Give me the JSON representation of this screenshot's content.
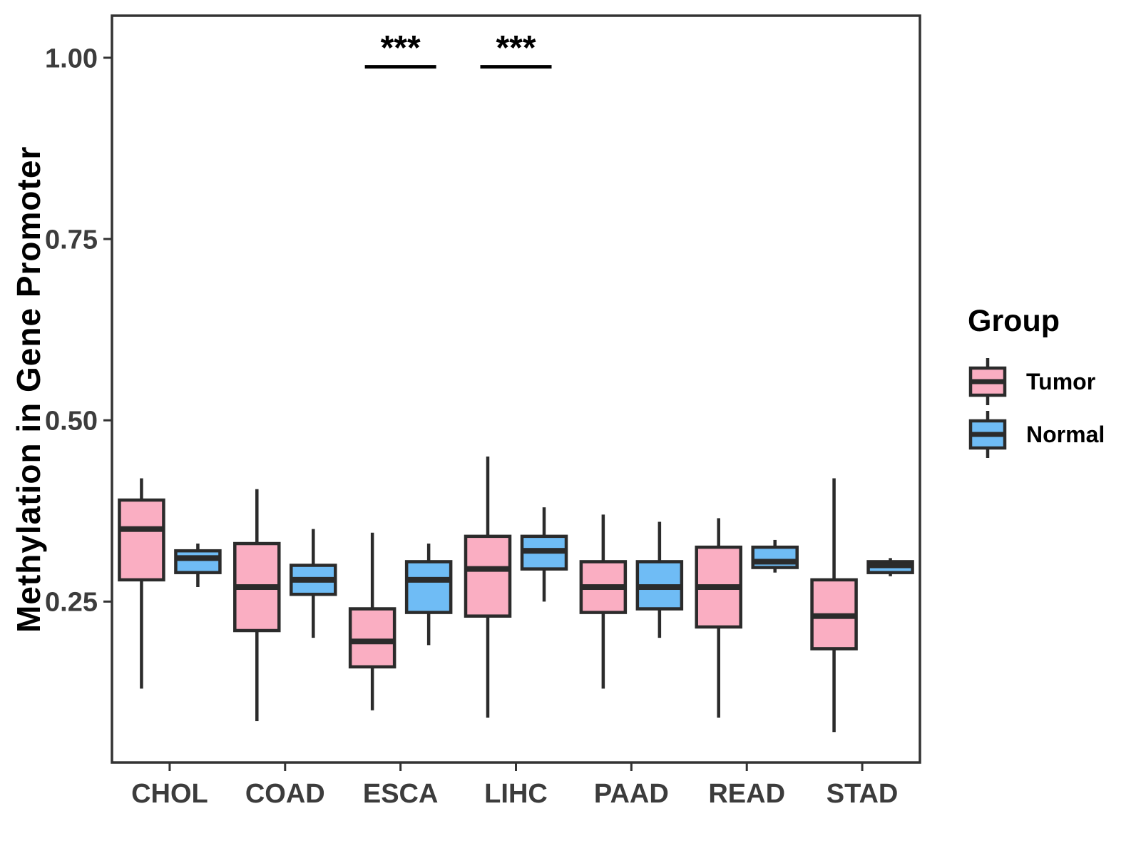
{
  "chart_data": {
    "type": "boxplot",
    "title": "",
    "xlabel": "",
    "ylabel": "Methylation in Gene Promoter",
    "categories": [
      "CHOL",
      "COAD",
      "ESCA",
      "LIHC",
      "PAAD",
      "READ",
      "STAD"
    ],
    "legend": {
      "title": "Group",
      "position": "right"
    },
    "axes": {
      "y_tick_labels": [
        "1.00",
        "0.75",
        "0.50",
        "0.25"
      ],
      "y_tick_values": [
        1.0,
        0.75,
        0.5,
        0.25
      ],
      "y_domain": [
        0.028,
        1.058
      ],
      "grid": false
    },
    "series": [
      {
        "name": "Tumor",
        "fill": "#FAAEC2",
        "boxes": [
          {
            "category": "CHOL",
            "low": 0.13,
            "q1": 0.28,
            "median": 0.35,
            "q3": 0.39,
            "high": 0.42
          },
          {
            "category": "COAD",
            "low": 0.085,
            "q1": 0.21,
            "median": 0.27,
            "q3": 0.33,
            "high": 0.405
          },
          {
            "category": "ESCA",
            "low": 0.1,
            "q1": 0.16,
            "median": 0.195,
            "q3": 0.24,
            "high": 0.345
          },
          {
            "category": "LIHC",
            "low": 0.09,
            "q1": 0.23,
            "median": 0.295,
            "q3": 0.34,
            "high": 0.45
          },
          {
            "category": "PAAD",
            "low": 0.13,
            "q1": 0.235,
            "median": 0.27,
            "q3": 0.305,
            "high": 0.37
          },
          {
            "category": "READ",
            "low": 0.09,
            "q1": 0.215,
            "median": 0.27,
            "q3": 0.325,
            "high": 0.365
          },
          {
            "category": "STAD",
            "low": 0.07,
            "q1": 0.185,
            "median": 0.23,
            "q3": 0.28,
            "high": 0.42
          }
        ]
      },
      {
        "name": "Normal",
        "fill": "#6FBCF5",
        "boxes": [
          {
            "category": "CHOL",
            "low": 0.27,
            "q1": 0.29,
            "median": 0.31,
            "q3": 0.32,
            "high": 0.33
          },
          {
            "category": "COAD",
            "low": 0.2,
            "q1": 0.26,
            "median": 0.28,
            "q3": 0.3,
            "high": 0.35
          },
          {
            "category": "ESCA",
            "low": 0.19,
            "q1": 0.235,
            "median": 0.28,
            "q3": 0.305,
            "high": 0.33
          },
          {
            "category": "LIHC",
            "low": 0.25,
            "q1": 0.295,
            "median": 0.32,
            "q3": 0.34,
            "high": 0.38
          },
          {
            "category": "PAAD",
            "low": 0.2,
            "q1": 0.24,
            "median": 0.27,
            "q3": 0.305,
            "high": 0.36
          },
          {
            "category": "READ",
            "low": 0.29,
            "q1": 0.297,
            "median": 0.305,
            "q3": 0.325,
            "high": 0.335
          },
          {
            "category": "STAD",
            "low": 0.285,
            "q1": 0.29,
            "median": 0.3,
            "q3": 0.305,
            "high": 0.31
          }
        ]
      }
    ],
    "significance": [
      {
        "category": "ESCA",
        "label": "***",
        "bar_y": 0.99
      },
      {
        "category": "LIHC",
        "label": "***",
        "bar_y": 0.99
      }
    ],
    "style": {
      "panel_border_color": "#333333",
      "box_stroke_color": "#2B2B2B",
      "axis_text_color": "#3C3C3C",
      "tick_color": "#333333",
      "significance_color": "#000000",
      "background": "#FFFFFF"
    }
  }
}
